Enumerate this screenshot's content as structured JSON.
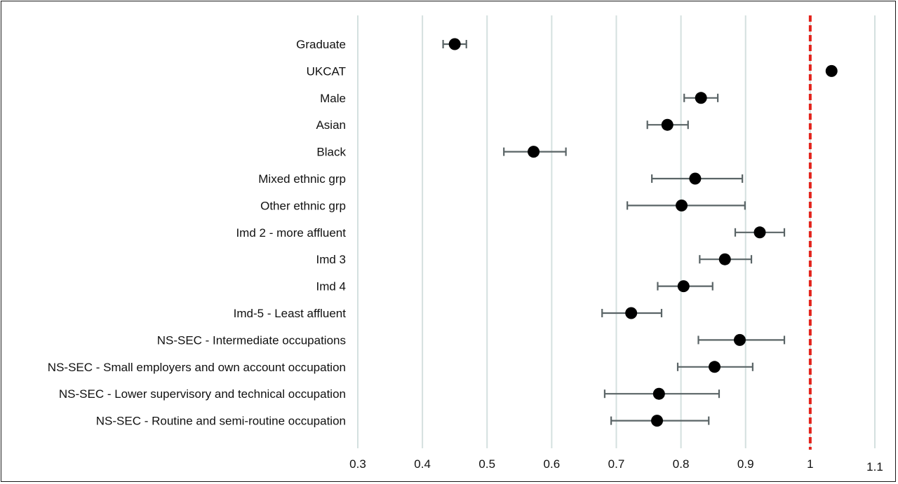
{
  "chart_data": {
    "type": "forest",
    "xlim": [
      0.3,
      1.1
    ],
    "xticks": [
      "0.3",
      "0.4",
      "0.5",
      "0.6",
      "0.7",
      "0.8",
      "0.9",
      "1",
      "1.1"
    ],
    "reference_line": 1.0,
    "grid": "vertical",
    "colors": {
      "point": "#000000",
      "errorbar": "#5a6466",
      "gridline": "#d4e0df",
      "reference": "#e3231b",
      "frame": "#1a1a1a"
    },
    "rows": [
      {
        "label": "Graduate",
        "estimate": 0.45,
        "ci_low": 0.432,
        "ci_high": 0.468
      },
      {
        "label": "UKCAT",
        "estimate": 1.033,
        "ci_low": null,
        "ci_high": null
      },
      {
        "label": "Male",
        "estimate": 0.831,
        "ci_low": 0.805,
        "ci_high": 0.857
      },
      {
        "label": "Asian",
        "estimate": 0.779,
        "ci_low": 0.748,
        "ci_high": 0.811
      },
      {
        "label": "Black",
        "estimate": 0.572,
        "ci_low": 0.526,
        "ci_high": 0.622
      },
      {
        "label": "Mixed ethnic grp",
        "estimate": 0.822,
        "ci_low": 0.755,
        "ci_high": 0.895
      },
      {
        "label": "Other ethnic grp",
        "estimate": 0.801,
        "ci_low": 0.717,
        "ci_high": 0.899
      },
      {
        "label": "Imd 2 - more affluent",
        "estimate": 0.922,
        "ci_low": 0.884,
        "ci_high": 0.96
      },
      {
        "label": "Imd 3",
        "estimate": 0.868,
        "ci_low": 0.829,
        "ci_high": 0.909
      },
      {
        "label": "Imd 4",
        "estimate": 0.804,
        "ci_low": 0.764,
        "ci_high": 0.849
      },
      {
        "label": "Imd-5 - Least affluent",
        "estimate": 0.723,
        "ci_low": 0.678,
        "ci_high": 0.77
      },
      {
        "label": "NS-SEC - Intermediate occupations",
        "estimate": 0.891,
        "ci_low": 0.827,
        "ci_high": 0.96
      },
      {
        "label": "NS-SEC - Small employers and own account occupation",
        "estimate": 0.852,
        "ci_low": 0.795,
        "ci_high": 0.911
      },
      {
        "label": "NS-SEC - Lower supervisory and technical occupation",
        "estimate": 0.766,
        "ci_low": 0.682,
        "ci_high": 0.859
      },
      {
        "label": "NS-SEC - Routine and semi-routine occupation",
        "estimate": 0.763,
        "ci_low": 0.692,
        "ci_high": 0.843
      }
    ]
  }
}
